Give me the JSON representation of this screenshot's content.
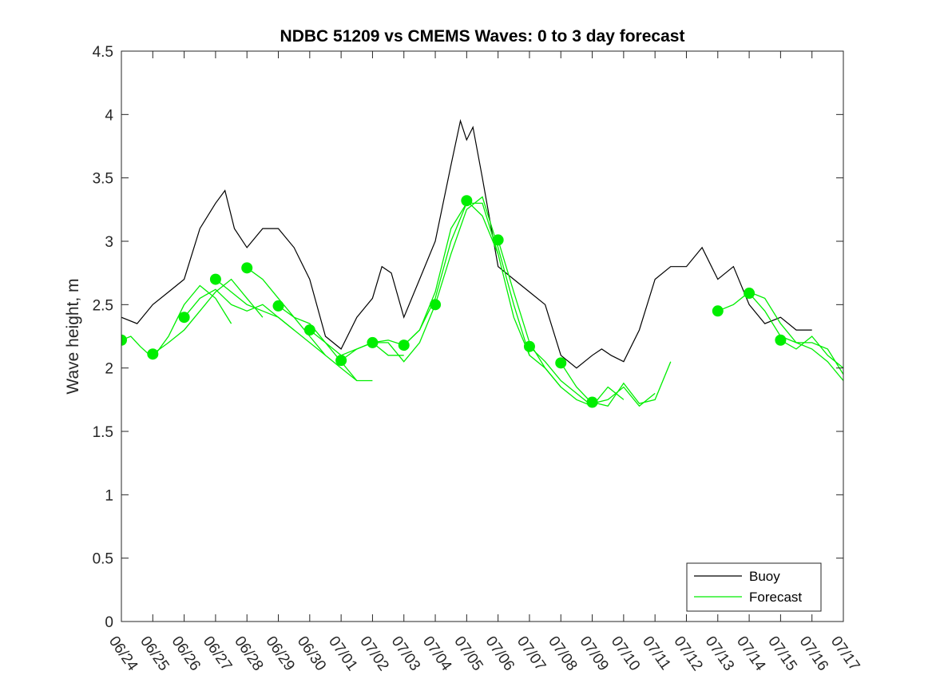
{
  "chart_data": {
    "type": "line",
    "title": "NDBC 51209 vs CMEMS Waves: 0 to 3 day forecast",
    "xlabel": "",
    "ylabel": "Wave height, m",
    "x_ticks": [
      "06/24",
      "06/25",
      "06/26",
      "06/27",
      "06/28",
      "06/29",
      "06/30",
      "07/01",
      "07/02",
      "07/03",
      "07/04",
      "07/05",
      "07/06",
      "07/07",
      "07/08",
      "07/09",
      "07/10",
      "07/11",
      "07/12",
      "07/13",
      "07/14",
      "07/15",
      "07/16",
      "07/17"
    ],
    "y_ticks": [
      "0",
      "0.5",
      "1",
      "1.5",
      "2",
      "2.5",
      "3",
      "3.5",
      "4",
      "4.5"
    ],
    "xlim": [
      0,
      23
    ],
    "ylim": [
      0,
      4.5
    ],
    "grid": false,
    "legend_position": "bottom-right",
    "colors": {
      "buoy": "#000000",
      "forecast": "#00ee00"
    },
    "series": [
      {
        "name": "Buoy",
        "x": [
          0,
          0.5,
          1,
          1.5,
          2,
          2.5,
          3,
          3.3,
          3.6,
          4,
          4.5,
          5,
          5.5,
          6,
          6.5,
          7,
          7.5,
          8,
          8.3,
          8.6,
          9,
          9.5,
          10,
          10.5,
          10.8,
          11,
          11.2,
          11.5,
          12,
          12.5,
          13,
          13.5,
          14,
          14.5,
          15,
          15.3,
          15.6,
          16,
          16.5,
          17,
          17.5,
          18,
          18.5,
          19,
          19.5,
          20,
          20.5,
          21,
          21.5,
          22
        ],
        "y": [
          2.4,
          2.35,
          2.5,
          2.6,
          2.7,
          3.1,
          3.3,
          3.4,
          3.1,
          2.95,
          3.1,
          3.1,
          2.95,
          2.7,
          2.25,
          2.15,
          2.4,
          2.55,
          2.8,
          2.75,
          2.4,
          2.7,
          3.0,
          3.6,
          3.95,
          3.8,
          3.9,
          3.5,
          2.8,
          2.7,
          2.6,
          2.5,
          2.1,
          2.0,
          2.1,
          2.15,
          2.1,
          2.05,
          2.3,
          2.7,
          2.8,
          2.8,
          2.95,
          2.7,
          2.8,
          2.5,
          2.35,
          2.4,
          2.3,
          2.3
        ]
      },
      {
        "name": "Forecast",
        "segments": [
          {
            "x": [
              0,
              0.3,
              0.6,
              1,
              1.5,
              2,
              2.5,
              3,
              3.5
            ],
            "y": [
              2.22,
              2.25,
              2.17,
              2.08,
              2.25,
              2.5,
              2.65,
              2.55,
              2.35
            ]
          },
          {
            "x": [
              1,
              1.5,
              2,
              2.5,
              3,
              3.5,
              4,
              4.5
            ],
            "y": [
              2.11,
              2.2,
              2.3,
              2.45,
              2.6,
              2.7,
              2.55,
              2.4
            ]
          },
          {
            "x": [
              2,
              2.5,
              3,
              3.5,
              4,
              4.5,
              5,
              5.5
            ],
            "y": [
              2.4,
              2.55,
              2.62,
              2.5,
              2.45,
              2.5,
              2.4,
              2.3
            ]
          },
          {
            "x": [
              3,
              3.5,
              4,
              4.5,
              5,
              5.5,
              6,
              6.5
            ],
            "y": [
              2.7,
              2.6,
              2.5,
              2.45,
              2.4,
              2.3,
              2.2,
              2.1
            ]
          },
          {
            "x": [
              4,
              4.5,
              5,
              5.5,
              6,
              6.5,
              7,
              7.5
            ],
            "y": [
              2.79,
              2.7,
              2.55,
              2.4,
              2.25,
              2.1,
              2.0,
              1.9
            ]
          },
          {
            "x": [
              5,
              5.5,
              6,
              6.5,
              7,
              7.5,
              8
            ],
            "y": [
              2.49,
              2.4,
              2.35,
              2.2,
              2.05,
              1.9,
              1.9
            ]
          },
          {
            "x": [
              6,
              6.5,
              7,
              7.5,
              8,
              8.5,
              9
            ],
            "y": [
              2.3,
              2.2,
              2.1,
              2.15,
              2.2,
              2.1,
              2.1
            ]
          },
          {
            "x": [
              7,
              7.5,
              8,
              8.5,
              9,
              9.5,
              10
            ],
            "y": [
              2.06,
              2.15,
              2.2,
              2.2,
              2.05,
              2.2,
              2.5
            ]
          },
          {
            "x": [
              8,
              8.5,
              9,
              9.5,
              10,
              10.5,
              11
            ],
            "y": [
              2.2,
              2.22,
              2.18,
              2.3,
              2.6,
              3.1,
              3.3
            ]
          },
          {
            "x": [
              9,
              9.5,
              10,
              10.5,
              11,
              11.5,
              12
            ],
            "y": [
              2.18,
              2.3,
              2.55,
              3.0,
              3.3,
              3.3,
              2.9
            ]
          },
          {
            "x": [
              10,
              10.5,
              11,
              11.5,
              12,
              12.5,
              13
            ],
            "y": [
              2.5,
              2.9,
              3.25,
              3.35,
              2.95,
              2.5,
              2.1
            ]
          },
          {
            "x": [
              11,
              11.5,
              12,
              12.5,
              13,
              13.5,
              14
            ],
            "y": [
              3.32,
              3.2,
              2.9,
              2.4,
              2.1,
              2.0,
              1.85
            ]
          },
          {
            "x": [
              12,
              12.5,
              13,
              13.5,
              14,
              14.5,
              15
            ],
            "y": [
              3.01,
              2.6,
              2.2,
              2.0,
              1.85,
              1.75,
              1.7
            ]
          },
          {
            "x": [
              13,
              13.5,
              14,
              14.5,
              15,
              15.5,
              16
            ],
            "y": [
              2.17,
              2.05,
              1.9,
              1.8,
              1.7,
              1.85,
              1.75
            ]
          },
          {
            "x": [
              14,
              14.5,
              15,
              15.5,
              16,
              16.5,
              17
            ],
            "y": [
              2.04,
              1.85,
              1.72,
              1.75,
              1.85,
              1.7,
              1.8
            ]
          },
          {
            "x": [
              15,
              15.5,
              16,
              16.5,
              17,
              17.5
            ],
            "y": [
              1.73,
              1.7,
              1.88,
              1.72,
              1.75,
              2.05
            ]
          },
          {
            "x": [
              19,
              19.5,
              20,
              20.5,
              21,
              21.5,
              22,
              22.5,
              23
            ],
            "y": [
              2.45,
              2.5,
              2.6,
              2.55,
              2.35,
              2.2,
              2.2,
              2.15,
              1.95
            ]
          },
          {
            "x": [
              20,
              20.5,
              21,
              21.5,
              22,
              22.5,
              23
            ],
            "y": [
              2.59,
              2.45,
              2.25,
              2.2,
              2.15,
              2.05,
              1.9
            ]
          },
          {
            "x": [
              21,
              21.5,
              22,
              22.5,
              23
            ],
            "y": [
              2.22,
              2.15,
              2.25,
              2.1,
              2.0
            ]
          }
        ],
        "markers_x": [
          0,
          1,
          2,
          3,
          4,
          5,
          6,
          7,
          8,
          9,
          10,
          11,
          12,
          13,
          14,
          15,
          19,
          20,
          21
        ],
        "markers_y": [
          2.22,
          2.11,
          2.4,
          2.7,
          2.79,
          2.49,
          2.3,
          2.06,
          2.2,
          2.18,
          2.5,
          3.32,
          3.01,
          2.17,
          2.04,
          1.73,
          2.45,
          2.59,
          2.22
        ]
      }
    ],
    "legend": [
      "Buoy",
      "Forecast"
    ]
  }
}
